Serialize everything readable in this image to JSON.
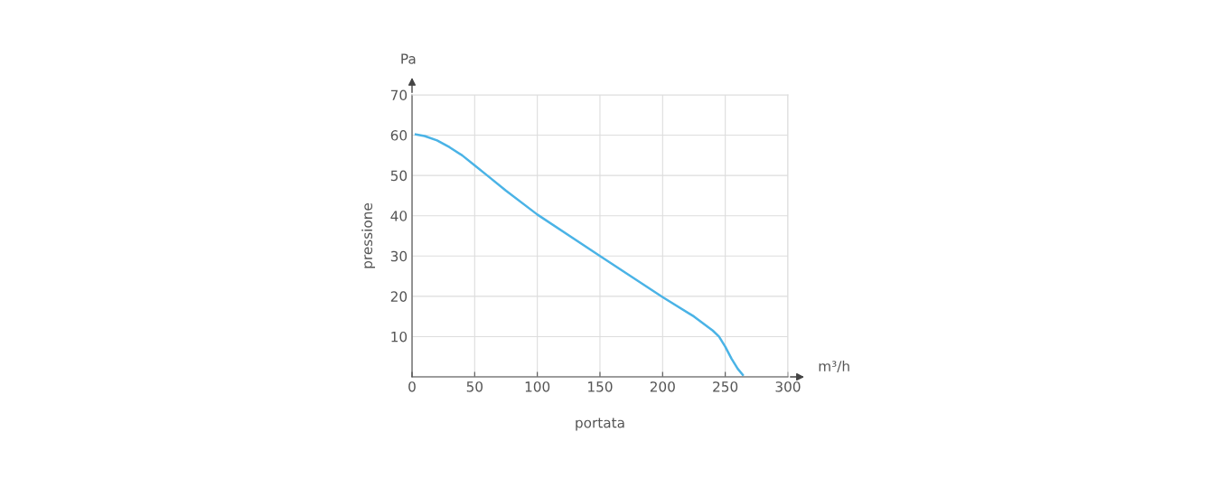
{
  "chart_data": {
    "type": "line",
    "xlabel": "portata",
    "ylabel": "pressione",
    "annotations": [
      "Pa",
      "m³/h"
    ],
    "series": [
      {
        "color": "#4ab3e6",
        "x": [
          3,
          10,
          20,
          30,
          40,
          50,
          60,
          75,
          100,
          150,
          200,
          225,
          240,
          245,
          250,
          255,
          260,
          264
        ],
        "values": [
          60.2,
          59.8,
          58.7,
          57,
          55,
          52.5,
          50,
          46.2,
          40.3,
          30,
          19.8,
          15,
          11.5,
          10,
          7.5,
          4.5,
          2,
          0.5
        ]
      }
    ],
    "xlim": [
      0,
      300
    ],
    "xticks": [
      0,
      50,
      100,
      150,
      200,
      250,
      300
    ],
    "ylim": [
      0,
      70
    ],
    "yticks": [
      {
        "value": 0,
        "label": null
      },
      10,
      20,
      30,
      40,
      50,
      60,
      70
    ],
    "grid": true,
    "legend": false,
    "marker": "none",
    "line_style": "solid"
  }
}
